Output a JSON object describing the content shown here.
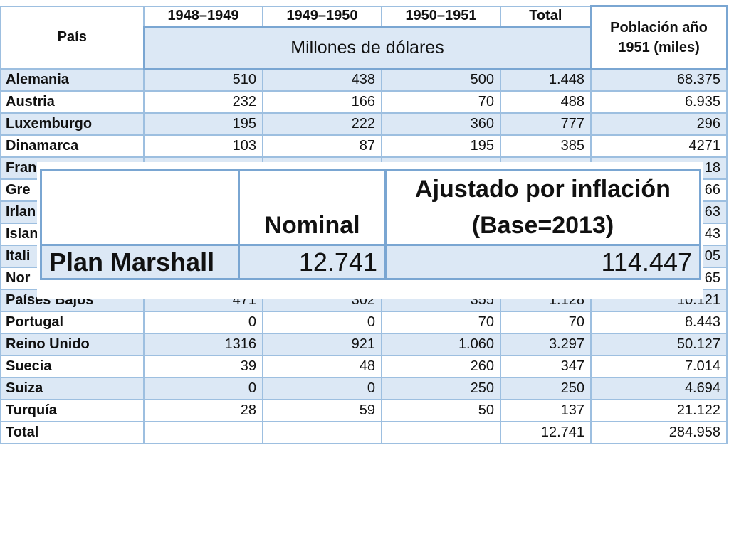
{
  "table": {
    "headers": {
      "country": "País",
      "y1": "1948–1949",
      "y2": "1949–1950",
      "y3": "1950–1951",
      "total": "Total",
      "population": "Población año 1951 (miles)",
      "unit": "Millones de dólares"
    },
    "rows": [
      {
        "country": "Alemania",
        "y1": "510",
        "y2": "438",
        "y3": "500",
        "total": "1.448",
        "population": "68.375"
      },
      {
        "country": "Austria",
        "y1": "232",
        "y2": "166",
        "y3": "70",
        "total": "488",
        "population": "6.935"
      },
      {
        "country": "Luxemburgo",
        "y1": "195",
        "y2": "222",
        "y3": "360",
        "total": "777",
        "population": "296"
      },
      {
        "country": "Dinamarca",
        "y1": "103",
        "y2": "87",
        "y3": "195",
        "total": "385",
        "population": "4271"
      },
      {
        "country": "Fran",
        "y1": "",
        "y2": "",
        "y3": "",
        "total": "",
        "population": "18"
      },
      {
        "country": "Gre",
        "y1": "",
        "y2": "",
        "y3": "",
        "total": "",
        "population": "66"
      },
      {
        "country": "Irlan",
        "y1": "",
        "y2": "",
        "y3": "",
        "total": "",
        "population": "63"
      },
      {
        "country": "Islan",
        "y1": "",
        "y2": "",
        "y3": "",
        "total": "",
        "population": "43"
      },
      {
        "country": "Itali",
        "y1": "",
        "y2": "",
        "y3": "",
        "total": "",
        "population": "05"
      },
      {
        "country": "Nor",
        "y1": "",
        "y2": "",
        "y3": "",
        "total": "",
        "population": "65"
      },
      {
        "country": "Países Bajos",
        "y1": "471",
        "y2": "302",
        "y3": "355",
        "total": "1.128",
        "population": "10.121"
      },
      {
        "country": "Portugal",
        "y1": "0",
        "y2": "0",
        "y3": "70",
        "total": "70",
        "population": "8.443"
      },
      {
        "country": "Reino Unido",
        "y1": "1316",
        "y2": "921",
        "y3": "1.060",
        "total": "3.297",
        "population": "50.127"
      },
      {
        "country": "Suecia",
        "y1": "39",
        "y2": "48",
        "y3": "260",
        "total": "347",
        "population": "7.014"
      },
      {
        "country": "Suiza",
        "y1": "0",
        "y2": "0",
        "y3": "250",
        "total": "250",
        "population": "4.694"
      },
      {
        "country": "Turquía",
        "y1": "28",
        "y2": "59",
        "y3": "50",
        "total": "137",
        "population": "21.122"
      },
      {
        "country": "Total",
        "y1": "",
        "y2": "",
        "y3": "",
        "total": "12.741",
        "population": "284.958"
      }
    ]
  },
  "overlay": {
    "col_nominal": "Nominal",
    "col_adjusted_line1": "Ajustado por inflación",
    "col_adjusted_line2": "(Base=2013)",
    "row_label": "Plan Marshall",
    "nominal_value": "12.741",
    "adjusted_value": "114.447"
  }
}
